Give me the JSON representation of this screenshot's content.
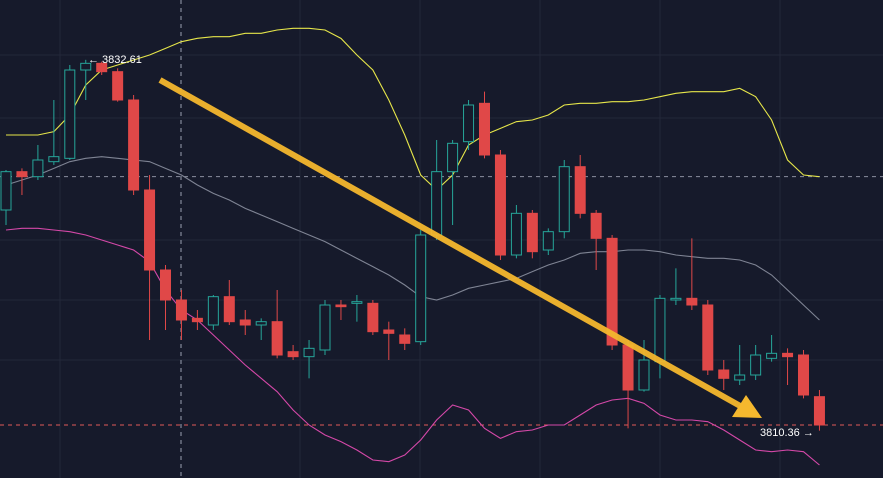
{
  "chart_data": {
    "type": "candlestick",
    "open": [
      3823.6,
      3825.9,
      3825.6,
      3826.5,
      3826.7,
      3832.0,
      3832.4,
      3831.9,
      3830.2,
      3824.8,
      3820.0,
      3818.2,
      3817.1,
      3816.7,
      3818.4,
      3817.0,
      3816.7,
      3816.9,
      3815.1,
      3814.8,
      3815.2,
      3817.9,
      3818.0,
      3818.0,
      3816.4,
      3816.1,
      3815.7,
      3822.1,
      3825.9,
      3827.7,
      3830.0,
      3826.9,
      3820.9,
      3823.4,
      3821.2,
      3822.3,
      3826.2,
      3823.4,
      3821.9,
      3815.5,
      3812.8,
      3814.5,
      3818.2,
      3818.3,
      3817.9,
      3814.0,
      3813.4,
      3813.7,
      3814.7,
      3815.0,
      3814.9,
      3812.4
    ],
    "close": [
      3825.9,
      3825.6,
      3826.6,
      3826.8,
      3832.0,
      3832.4,
      3831.9,
      3830.2,
      3824.8,
      3820.0,
      3818.2,
      3817.0,
      3816.9,
      3818.4,
      3816.9,
      3816.7,
      3816.9,
      3814.9,
      3814.8,
      3815.3,
      3817.9,
      3817.8,
      3818.1,
      3816.3,
      3816.2,
      3815.6,
      3822.1,
      3825.9,
      3827.6,
      3829.9,
      3826.9,
      3820.9,
      3823.4,
      3821.1,
      3822.3,
      3826.2,
      3823.4,
      3821.9,
      3815.5,
      3812.8,
      3814.6,
      3818.3,
      3818.3,
      3817.9,
      3814.0,
      3813.5,
      3813.7,
      3814.9,
      3815.0,
      3814.8,
      3812.5,
      3810.7
    ],
    "high": [
      3826.0,
      3826.1,
      3827.5,
      3830.2,
      3832.3,
      3832.61,
      3832.5,
      3832.1,
      3830.5,
      3825.7,
      3820.3,
      3818.8,
      3817.6,
      3818.5,
      3819.4,
      3817.6,
      3817.1,
      3818.8,
      3815.5,
      3815.8,
      3818.2,
      3818.2,
      3818.5,
      3818.2,
      3816.9,
      3816.5,
      3822.4,
      3827.8,
      3827.8,
      3830.2,
      3830.7,
      3827.2,
      3823.9,
      3823.6,
      3822.5,
      3826.6,
      3826.9,
      3823.6,
      3822.1,
      3815.8,
      3815.8,
      3818.5,
      3820.1,
      3821.9,
      3818.2,
      3814.6,
      3815.5,
      3815.5,
      3816.1,
      3815.3,
      3815.2,
      3812.8
    ],
    "low": [
      3822.7,
      3824.5,
      3825.4,
      3826.3,
      3826.6,
      3830.2,
      3831.7,
      3830.1,
      3824.5,
      3815.8,
      3816.4,
      3815.8,
      3816.4,
      3816.4,
      3816.7,
      3816.1,
      3815.8,
      3814.7,
      3814.6,
      3813.5,
      3814.9,
      3817.0,
      3816.9,
      3816.1,
      3814.6,
      3815.2,
      3815.5,
      3821.8,
      3822.7,
      3827.2,
      3826.7,
      3820.6,
      3820.7,
      3820.7,
      3820.9,
      3821.9,
      3823.1,
      3820.0,
      3815.2,
      3810.5,
      3812.7,
      3813.5,
      3817.9,
      3817.6,
      3813.7,
      3812.8,
      3813.1,
      3813.4,
      3814.5,
      3813.1,
      3812.3,
      3810.36
    ],
    "up_color": "#26a69a",
    "down_color": "#e04848",
    "series": [
      {
        "color": "#e6e64a",
        "values": [
          3828.1,
          3828.1,
          3828.1,
          3828.3,
          3829.3,
          3831.1,
          3832.0,
          3832.3,
          3832.6,
          3832.9,
          3833.3,
          3833.7,
          3833.9,
          3834.0,
          3834.0,
          3834.2,
          3834.2,
          3834.4,
          3834.5,
          3834.5,
          3834.4,
          3833.9,
          3832.9,
          3832.0,
          3830.2,
          3828.1,
          3825.7,
          3824.8,
          3825.7,
          3827.5,
          3828.1,
          3828.5,
          3828.9,
          3829.0,
          3829.3,
          3829.9,
          3830.0,
          3830.0,
          3830.1,
          3830.1,
          3830.2,
          3830.4,
          3830.6,
          3830.7,
          3830.7,
          3830.7,
          3830.9,
          3830.4,
          3829.0,
          3826.6,
          3825.7,
          3825.6
        ]
      },
      {
        "color": "#7f8494",
        "values": [
          3825.1,
          3825.4,
          3825.7,
          3826.1,
          3826.5,
          3826.7,
          3826.8,
          3826.7,
          3826.6,
          3826.5,
          3826.1,
          3825.7,
          3825.1,
          3824.6,
          3824.2,
          3823.7,
          3823.3,
          3822.9,
          3822.5,
          3822.1,
          3821.7,
          3821.2,
          3820.7,
          3820.2,
          3819.7,
          3819.1,
          3818.4,
          3818.2,
          3818.5,
          3818.9,
          3819.1,
          3819.3,
          3819.5,
          3819.9,
          3820.3,
          3820.6,
          3821.0,
          3821.1,
          3821.1,
          3821.2,
          3821.2,
          3821.1,
          3820.9,
          3820.8,
          3820.7,
          3820.7,
          3820.6,
          3820.3,
          3819.7,
          3818.8,
          3817.9,
          3817.0
        ]
      },
      {
        "color": "#d448a8",
        "values": [
          3822.4,
          3822.5,
          3822.5,
          3822.4,
          3822.3,
          3822.1,
          3821.8,
          3821.5,
          3821.2,
          3820.5,
          3818.8,
          3817.6,
          3817.0,
          3816.1,
          3815.2,
          3814.3,
          3813.5,
          3812.7,
          3811.6,
          3810.7,
          3810.1,
          3809.7,
          3809.2,
          3808.6,
          3808.5,
          3808.9,
          3809.8,
          3811.0,
          3811.9,
          3811.6,
          3810.5,
          3809.9,
          3810.3,
          3810.4,
          3810.7,
          3810.7,
          3811.3,
          3811.9,
          3812.2,
          3812.3,
          3812.0,
          3811.3,
          3811.0,
          3811.0,
          3810.9,
          3810.4,
          3809.8,
          3809.2,
          3809.1,
          3809.2,
          3809.1,
          3808.3
        ]
      }
    ],
    "price_lines": [
      {
        "value": 3825.6,
        "color": "#8a8f9e"
      },
      {
        "value": 3810.7,
        "color": "#e05a5a"
      }
    ],
    "annotations": [
      "← 3832.61",
      "3810.36 →"
    ],
    "ylim": [
      3807.52,
      3836.2
    ]
  }
}
